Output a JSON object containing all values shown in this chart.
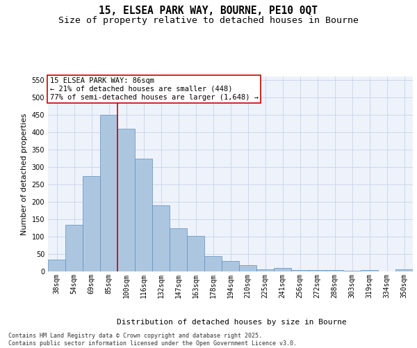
{
  "title1": "15, ELSEA PARK WAY, BOURNE, PE10 0QT",
  "title2": "Size of property relative to detached houses in Bourne",
  "xlabel": "Distribution of detached houses by size in Bourne",
  "ylabel": "Number of detached properties",
  "categories": [
    "38sqm",
    "54sqm",
    "69sqm",
    "85sqm",
    "100sqm",
    "116sqm",
    "132sqm",
    "147sqm",
    "163sqm",
    "178sqm",
    "194sqm",
    "210sqm",
    "225sqm",
    "241sqm",
    "256sqm",
    "272sqm",
    "288sqm",
    "303sqm",
    "319sqm",
    "334sqm",
    "350sqm"
  ],
  "values": [
    35,
    135,
    275,
    450,
    410,
    325,
    190,
    125,
    103,
    45,
    30,
    18,
    7,
    10,
    5,
    4,
    5,
    3,
    5,
    0,
    6
  ],
  "bar_color": "#adc6e0",
  "bar_edge_color": "#5a8fc0",
  "vline_x_index": 3,
  "vline_color": "#cc0000",
  "annotation_box_text": "15 ELSEA PARK WAY: 86sqm\n← 21% of detached houses are smaller (448)\n77% of semi-detached houses are larger (1,648) →",
  "annotation_box_color": "#cc0000",
  "bg_color": "#eef2fa",
  "grid_color": "#c8d4e8",
  "ylim": [
    0,
    560
  ],
  "yticks": [
    0,
    50,
    100,
    150,
    200,
    250,
    300,
    350,
    400,
    450,
    500,
    550
  ],
  "footnote": "Contains HM Land Registry data © Crown copyright and database right 2025.\nContains public sector information licensed under the Open Government Licence v3.0.",
  "title_fontsize": 10.5,
  "subtitle_fontsize": 9.5,
  "axis_label_fontsize": 8,
  "tick_fontsize": 7,
  "annotation_fontsize": 7.5,
  "footnote_fontsize": 6
}
